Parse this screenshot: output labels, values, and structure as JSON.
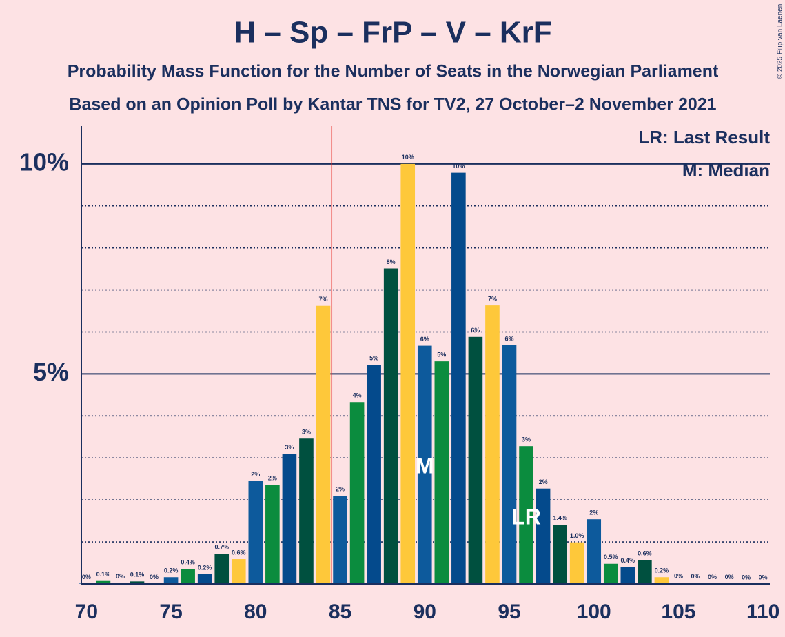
{
  "chart_data": {
    "type": "bar",
    "title": "H – Sp – FrP – V – KrF",
    "subtitle": "Probability Mass Function for the Number of Seats in the Norwegian Parliament",
    "subtitle2": "Based on an Opinion Poll by Kantar TNS for TV2, 27 October–2 November 2021",
    "copyright": "© 2025 Filip van Laenen",
    "legend_lr": "LR: Last Result",
    "legend_m": "M: Median",
    "median_label": "M",
    "last_result_label": "LR",
    "median": 90,
    "last_result": 96,
    "majority_line": 84.5,
    "x": [
      70,
      71,
      72,
      73,
      74,
      75,
      76,
      77,
      78,
      79,
      80,
      81,
      82,
      83,
      84,
      85,
      86,
      87,
      88,
      89,
      90,
      91,
      92,
      93,
      94,
      95,
      96,
      97,
      98,
      99,
      100,
      101,
      102,
      103,
      104,
      105,
      106,
      107,
      108,
      109,
      110
    ],
    "values": [
      0.01,
      0.07,
      0.02,
      0.06,
      0.01,
      0.16,
      0.36,
      0.23,
      0.72,
      0.59,
      2.45,
      2.36,
      3.09,
      3.46,
      6.62,
      2.1,
      4.33,
      5.22,
      7.51,
      10.0,
      5.67,
      5.3,
      9.79,
      5.88,
      6.63,
      5.68,
      3.28,
      2.27,
      1.41,
      0.99,
      1.54,
      0.48,
      0.4,
      0.57,
      0.16,
      0.03,
      0.02,
      0.01,
      0.01,
      0,
      0
    ],
    "value_labels": [
      "0%",
      "0.1%",
      "0%",
      "0.1%",
      "0%",
      "0.2%",
      "0.4%",
      "0.2%",
      "0.7%",
      "0.6%",
      "2%",
      "2%",
      "3%",
      "3%",
      "7%",
      "2%",
      "4%",
      "5%",
      "8%",
      "10%",
      "6%",
      "5%",
      "10%",
      "6%",
      "7%",
      "6%",
      "3%",
      "2%",
      "1.4%",
      "1.0%",
      "2%",
      "0.5%",
      "0.4%",
      "0.6%",
      "0.2%",
      "0%",
      "0%",
      "0%",
      "0%",
      "0%",
      "0%"
    ],
    "palette": [
      "#0d5a9c",
      "#0b8c3e",
      "#044a8c",
      "#00503f",
      "#fec83a"
    ],
    "xlim": [
      69.7,
      110.4
    ],
    "xticks": [
      70,
      75,
      80,
      85,
      90,
      95,
      100,
      105,
      110
    ],
    "ylim": [
      0,
      10.9
    ],
    "yticks": [
      {
        "value": 5,
        "label": "5%"
      },
      {
        "value": 10,
        "label": "10%"
      }
    ],
    "minor_yticks": [
      1,
      2,
      3,
      4,
      6,
      7,
      8,
      9
    ]
  }
}
